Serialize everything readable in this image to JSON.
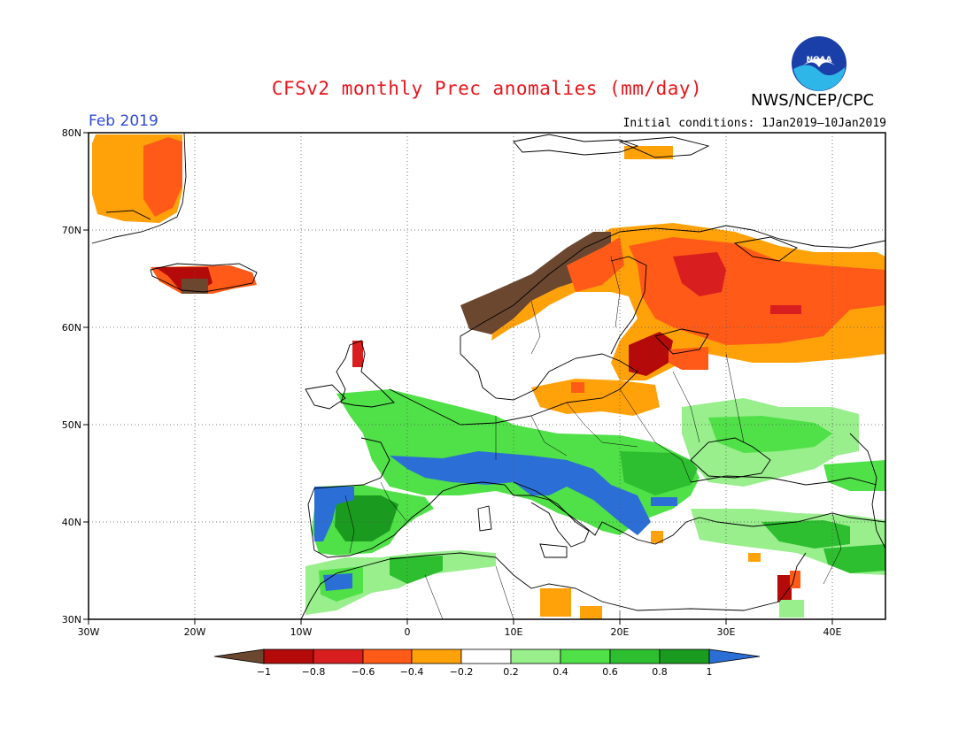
{
  "title": "CFSv2 monthly Prec anomalies (mm/day)",
  "agency": "NWS/NCEP/CPC",
  "logo_text": "NOAA",
  "period": "Feb 2019",
  "initial_conditions": "Initial conditions: 1Jan2019–10Jan2019",
  "map": {
    "lon_range": [
      -30,
      45
    ],
    "lat_range": [
      30,
      80
    ],
    "lon_ticks": [
      "30W",
      "20W",
      "10W",
      "0",
      "10E",
      "20E",
      "30E",
      "40E"
    ],
    "lat_ticks": [
      "80N",
      "70N",
      "60N",
      "50N",
      "40N",
      "30N"
    ]
  },
  "colorbar": {
    "labels": [
      "−1",
      "−0.8",
      "−0.6",
      "−0.4",
      "−0.2",
      "0.2",
      "0.4",
      "0.6",
      "0.8",
      "1"
    ],
    "colors": [
      "#6b4730",
      "#b40a0a",
      "#d81e1e",
      "#ff5a18",
      "#ffa20a",
      "#ffffff",
      "#98ef8c",
      "#50e048",
      "#2dbf30",
      "#1a9a1e",
      "#2b6fd6"
    ]
  },
  "anomaly_regions": [
    {
      "name": "greenland-east",
      "category": "-0.4",
      "color": "#ffa20a"
    },
    {
      "name": "greenland-east-core",
      "category": "-0.6",
      "color": "#ff5a18"
    },
    {
      "name": "iceland",
      "category": "-0.8",
      "color": "#b40a0a"
    },
    {
      "name": "norway-coast",
      "category": "-1",
      "color": "#6b4730"
    },
    {
      "name": "scandinavia-north",
      "category": "-0.4",
      "color": "#ffa20a"
    },
    {
      "name": "finland-russia",
      "category": "-0.6",
      "color": "#ff5a18"
    },
    {
      "name": "baltic",
      "category": "-0.8",
      "color": "#b40a0a"
    },
    {
      "name": "germany-poland",
      "category": "-0.4",
      "color": "#ffa20a"
    },
    {
      "name": "france-central-europe",
      "category": "0.4",
      "color": "#50e048"
    },
    {
      "name": "alps-italy",
      "category": "1",
      "color": "#2b6fd6"
    },
    {
      "name": "iberia",
      "category": "0.8",
      "color": "#1a9a1e"
    },
    {
      "name": "ukraine-russia",
      "category": "0.2",
      "color": "#98ef8c"
    },
    {
      "name": "turkey",
      "category": "0.4",
      "color": "#50e048"
    },
    {
      "name": "north-africa",
      "category": "0.4",
      "color": "#50e048"
    }
  ]
}
